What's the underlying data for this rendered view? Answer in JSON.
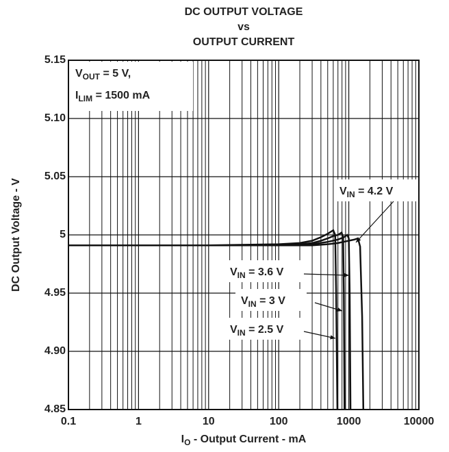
{
  "chart_data": {
    "type": "line",
    "title": [
      "DC OUTPUT VOLTAGE",
      "vs",
      "OUTPUT CURRENT"
    ],
    "x_label": {
      "base": "I",
      "sub": "O",
      "text": " - Output Current - mA"
    },
    "y_label": "DC Output Voltage - V",
    "annotations": [
      {
        "base": "V",
        "sub": "OUT",
        "text": " = 5 V,"
      },
      {
        "base": "I",
        "sub": "LIM",
        "text": " = 1500 mA"
      }
    ],
    "xscale": "log",
    "xlim": [
      0.1,
      10000
    ],
    "xticks": [
      0.1,
      1,
      10,
      100,
      1000,
      10000
    ],
    "ylim": [
      4.85,
      5.15
    ],
    "yticks": [
      4.85,
      {
        "value": 4.9,
        "label": "4.90"
      },
      4.95,
      5,
      5.05,
      {
        "value": 5.1,
        "label": "5.10"
      },
      5.15
    ],
    "grid": true,
    "series": [
      {
        "name": {
          "base": "V",
          "sub": "IN",
          "text": " = 2.5 V"
        },
        "color": "#111111",
        "x": [
          0.1,
          1,
          10,
          100,
          200,
          300,
          400,
          500,
          600,
          640,
          660,
          690
        ],
        "values": [
          4.991,
          4.991,
          4.991,
          4.992,
          4.993,
          4.995,
          4.998,
          5.001,
          5.004,
          5.0,
          4.95,
          4.84
        ]
      },
      {
        "name": {
          "base": "V",
          "sub": "IN",
          "text": " = 3 V"
        },
        "color": "#111111",
        "x": [
          0.1,
          1,
          10,
          100,
          200,
          300,
          400,
          500,
          600,
          700,
          790,
          830,
          850,
          870
        ],
        "values": [
          4.991,
          4.991,
          4.991,
          4.991,
          4.992,
          4.993,
          4.995,
          4.997,
          4.999,
          5.0,
          5.002,
          4.998,
          4.95,
          4.84
        ]
      },
      {
        "name": {
          "base": "V",
          "sub": "IN",
          "text": " = 3.6 V"
        },
        "color": "#111111",
        "x": [
          0.1,
          1,
          10,
          100,
          200,
          300,
          500,
          700,
          850,
          950,
          1000,
          1030,
          1060
        ],
        "values": [
          4.991,
          4.991,
          4.991,
          4.991,
          4.991,
          4.992,
          4.994,
          4.996,
          4.998,
          5.0,
          4.997,
          4.95,
          4.84
        ]
      },
      {
        "name": {
          "base": "V",
          "sub": "IN",
          "text": " = 4.2 V"
        },
        "color": "#111111",
        "x": [
          0.1,
          1,
          10,
          100,
          200,
          300,
          500,
          700,
          1000,
          1200,
          1350,
          1450,
          1550,
          1620
        ],
        "values": [
          4.991,
          4.991,
          4.991,
          4.991,
          4.991,
          4.991,
          4.992,
          4.993,
          4.995,
          4.996,
          4.997,
          4.99,
          4.93,
          4.84
        ]
      }
    ]
  }
}
